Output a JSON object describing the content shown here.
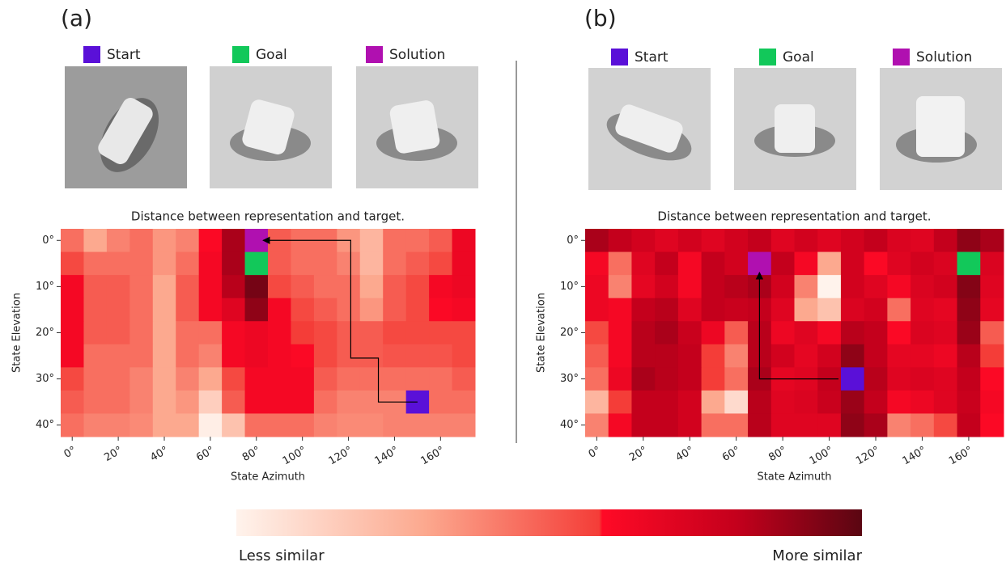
{
  "colormap": [
    [
      0,
      "#fff3ec"
    ],
    [
      0.3,
      "#fca98f"
    ],
    [
      0.58,
      "#f43d38"
    ],
    [
      0.585,
      "#ff0a26"
    ],
    [
      0.8,
      "#c4001c"
    ],
    [
      1,
      "#5a0612"
    ]
  ],
  "colorbar": {
    "low_label": "Less similar",
    "high_label": "More similar"
  },
  "chart_data": [
    {
      "type": "heatmap",
      "panel_label": "(a)",
      "title": "Distance between representation and target.",
      "xlabel": "State Azimuth",
      "ylabel": "State Elevation",
      "xlim": [
        -5,
        175
      ],
      "ylim": [
        -2.5,
        42.5
      ],
      "xticks": [
        {
          "value": 0,
          "label": "0°"
        },
        {
          "value": 20,
          "label": "20°"
        },
        {
          "value": 40,
          "label": "40°"
        },
        {
          "value": 60,
          "label": "60°"
        },
        {
          "value": 80,
          "label": "80°"
        },
        {
          "value": 100,
          "label": "100°"
        },
        {
          "value": 120,
          "label": "120°"
        },
        {
          "value": 140,
          "label": "140°"
        },
        {
          "value": 160,
          "label": "160°"
        }
      ],
      "yticks": [
        {
          "value": 0,
          "label": "0°"
        },
        {
          "value": 10,
          "label": "10°"
        },
        {
          "value": 20,
          "label": "20°"
        },
        {
          "value": 30,
          "label": "30°"
        },
        {
          "value": 40,
          "label": "40°"
        }
      ],
      "x": [
        0,
        10,
        20,
        30,
        40,
        50,
        60,
        70,
        80,
        90,
        100,
        110,
        120,
        130,
        140,
        150,
        160,
        170
      ],
      "y": [
        0,
        5,
        10,
        15,
        20,
        25,
        30,
        35,
        40
      ],
      "values": [
        [
          0.45,
          0.3,
          0.4,
          0.45,
          0.35,
          0.4,
          0.6,
          0.85,
          0.8,
          0.5,
          0.45,
          0.45,
          0.35,
          0.25,
          0.45,
          0.45,
          0.5,
          0.65
        ],
        [
          0.55,
          0.45,
          0.45,
          0.45,
          0.35,
          0.45,
          0.62,
          0.85,
          0.75,
          0.5,
          0.45,
          0.45,
          0.4,
          0.25,
          0.45,
          0.5,
          0.55,
          0.65
        ],
        [
          0.62,
          0.5,
          0.5,
          0.45,
          0.3,
          0.5,
          0.62,
          0.82,
          0.95,
          0.55,
          0.5,
          0.45,
          0.45,
          0.3,
          0.5,
          0.55,
          0.62,
          0.65
        ],
        [
          0.62,
          0.5,
          0.5,
          0.45,
          0.3,
          0.5,
          0.62,
          0.7,
          0.9,
          0.62,
          0.55,
          0.5,
          0.45,
          0.35,
          0.5,
          0.55,
          0.6,
          0.62
        ],
        [
          0.62,
          0.5,
          0.5,
          0.45,
          0.3,
          0.45,
          0.45,
          0.62,
          0.65,
          0.62,
          0.58,
          0.55,
          0.5,
          0.5,
          0.55,
          0.55,
          0.55,
          0.55
        ],
        [
          0.62,
          0.45,
          0.45,
          0.45,
          0.3,
          0.45,
          0.4,
          0.62,
          0.65,
          0.62,
          0.6,
          0.55,
          0.5,
          0.5,
          0.52,
          0.52,
          0.52,
          0.55
        ],
        [
          0.55,
          0.45,
          0.45,
          0.4,
          0.3,
          0.4,
          0.3,
          0.55,
          0.62,
          0.62,
          0.62,
          0.5,
          0.45,
          0.45,
          0.45,
          0.45,
          0.45,
          0.5
        ],
        [
          0.5,
          0.45,
          0.45,
          0.4,
          0.3,
          0.35,
          0.15,
          0.5,
          0.62,
          0.62,
          0.62,
          0.45,
          0.4,
          0.4,
          0.4,
          0.45,
          0.45,
          0.45
        ],
        [
          0.45,
          0.4,
          0.4,
          0.38,
          0.3,
          0.3,
          0.02,
          0.2,
          0.45,
          0.45,
          0.45,
          0.4,
          0.38,
          0.38,
          0.4,
          0.4,
          0.4,
          0.4
        ]
      ],
      "markers": [
        {
          "name": "Start",
          "color": "#5a10d8",
          "x": 150,
          "y": 35
        },
        {
          "name": "Goal",
          "color": "#12c85a",
          "x": 80,
          "y": 5
        },
        {
          "name": "Solution",
          "color": "#b010b0",
          "x": 80,
          "y": 0
        }
      ],
      "path": {
        "x": [
          150,
          133,
          133,
          121,
          121,
          83
        ],
        "y": [
          35,
          35,
          25.5,
          25.5,
          0,
          0
        ]
      }
    },
    {
      "type": "heatmap",
      "panel_label": "(b)",
      "title": "Distance between representation and target.",
      "xlabel": "State Azimuth",
      "ylabel": "State Elevation",
      "xlim": [
        -5,
        175
      ],
      "ylim": [
        -2.5,
        42.5
      ],
      "xticks": [
        {
          "value": 0,
          "label": "0°"
        },
        {
          "value": 20,
          "label": "20°"
        },
        {
          "value": 40,
          "label": "40°"
        },
        {
          "value": 60,
          "label": "60°"
        },
        {
          "value": 80,
          "label": "80°"
        },
        {
          "value": 100,
          "label": "100°"
        },
        {
          "value": 120,
          "label": "120°"
        },
        {
          "value": 140,
          "label": "140°"
        },
        {
          "value": 160,
          "label": "160°"
        }
      ],
      "yticks": [
        {
          "value": 0,
          "label": "0°"
        },
        {
          "value": 10,
          "label": "10°"
        },
        {
          "value": 20,
          "label": "20°"
        },
        {
          "value": 30,
          "label": "30°"
        },
        {
          "value": 40,
          "label": "40°"
        }
      ],
      "x": [
        0,
        10,
        20,
        30,
        40,
        50,
        60,
        70,
        80,
        90,
        100,
        110,
        120,
        130,
        140,
        150,
        160,
        170
      ],
      "y": [
        0,
        5,
        10,
        15,
        20,
        25,
        30,
        35,
        40
      ],
      "values": [
        [
          0.85,
          0.8,
          0.75,
          0.7,
          0.75,
          0.7,
          0.75,
          0.8,
          0.7,
          0.75,
          0.7,
          0.75,
          0.8,
          0.72,
          0.7,
          0.8,
          0.9,
          0.85
        ],
        [
          0.62,
          0.45,
          0.7,
          0.8,
          0.62,
          0.8,
          0.75,
          0.82,
          0.8,
          0.62,
          0.3,
          0.75,
          0.6,
          0.7,
          0.75,
          0.72,
          0.8,
          0.72
        ],
        [
          0.65,
          0.4,
          0.68,
          0.75,
          0.62,
          0.8,
          0.82,
          0.85,
          0.75,
          0.4,
          0.0,
          0.75,
          0.7,
          0.62,
          0.72,
          0.75,
          0.92,
          0.7
        ],
        [
          0.65,
          0.62,
          0.8,
          0.82,
          0.7,
          0.8,
          0.78,
          0.8,
          0.7,
          0.3,
          0.2,
          0.72,
          0.75,
          0.45,
          0.7,
          0.68,
          0.9,
          0.68
        ],
        [
          0.55,
          0.62,
          0.82,
          0.85,
          0.78,
          0.65,
          0.5,
          0.82,
          0.65,
          0.7,
          0.62,
          0.82,
          0.8,
          0.6,
          0.72,
          0.7,
          0.88,
          0.5
        ],
        [
          0.5,
          0.62,
          0.82,
          0.82,
          0.8,
          0.58,
          0.4,
          0.82,
          0.75,
          0.68,
          0.75,
          0.9,
          0.8,
          0.68,
          0.68,
          0.65,
          0.82,
          0.58
        ],
        [
          0.45,
          0.65,
          0.85,
          0.82,
          0.8,
          0.58,
          0.45,
          0.85,
          0.68,
          0.7,
          0.8,
          0.9,
          0.82,
          0.7,
          0.72,
          0.7,
          0.8,
          0.6
        ],
        [
          0.25,
          0.58,
          0.8,
          0.8,
          0.75,
          0.3,
          0.1,
          0.82,
          0.7,
          0.72,
          0.78,
          0.88,
          0.8,
          0.62,
          0.65,
          0.7,
          0.78,
          0.62
        ],
        [
          0.4,
          0.62,
          0.8,
          0.8,
          0.75,
          0.45,
          0.45,
          0.82,
          0.7,
          0.7,
          0.7,
          0.9,
          0.85,
          0.4,
          0.45,
          0.55,
          0.8,
          0.6
        ]
      ],
      "markers": [
        {
          "name": "Start",
          "color": "#5a10d8",
          "x": 110,
          "y": 30
        },
        {
          "name": "Goal",
          "color": "#12c85a",
          "x": 160,
          "y": 5
        },
        {
          "name": "Solution",
          "color": "#b010b0",
          "x": 70,
          "y": 5
        }
      ],
      "path": {
        "x": [
          104,
          70,
          70
        ],
        "y": [
          30,
          30,
          7
        ]
      }
    }
  ]
}
